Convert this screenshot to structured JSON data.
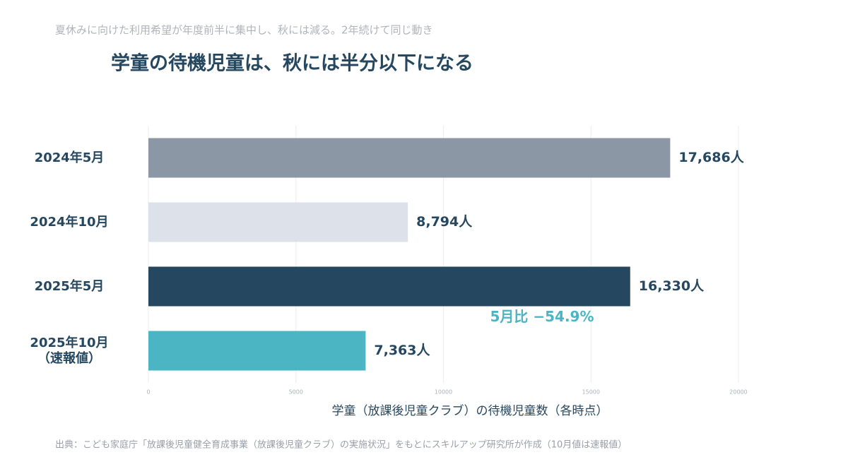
{
  "chart_data": {
    "type": "barh",
    "subtitle": "夏休みに向けた利用希望が年度前半に集中し、秋には減る。2年続けて同じ動き",
    "title": "学童の待機児童は、秋には半分以下になる",
    "categories": [
      "2024年5月",
      "2024年10月",
      "2025年5月",
      "2025年10月\n（速報値）"
    ],
    "values": [
      17686,
      8794,
      16330,
      7363
    ],
    "value_labels": [
      "17,686人",
      "8,794人",
      "16,330人",
      "7,363人"
    ],
    "colors": [
      "#8c97a6",
      "#dde2ea",
      "#25475f",
      "#4bb5c4"
    ],
    "annotation": "5月比 −54.9%",
    "annotation_color": "#4bb5c4",
    "x_label": "学童（放課後児童クラブ）の待機児童数（各時点）",
    "xlim": [
      0,
      20000
    ],
    "xticks": [
      0,
      5000,
      10000,
      15000,
      20000
    ],
    "grid": true,
    "source": "出典：こども家庭庁「放課後児童健全育成事業（放課後児童クラブ）の実施状況」をもとにスキルアップ研究所が作成（10月値は速報値）"
  }
}
